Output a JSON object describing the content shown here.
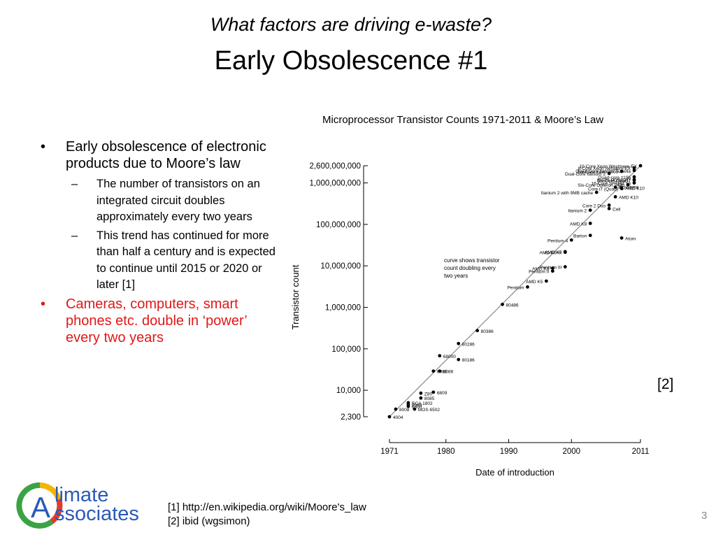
{
  "slide": {
    "subtitle": "What factors are driving e-waste?",
    "title": "Early Obsolescence #1",
    "page_number": "3",
    "figure_ref": "[2]"
  },
  "bullets": [
    {
      "text": "Early obsolescence of electronic products due to Moore’s law",
      "children": [
        "The number of transistors on an integrated circuit doubles approximately every two years",
        "This trend has continued for more than half a century and is expected to continue until 2015 or 2020 or later [1]"
      ]
    },
    {
      "text": "Cameras, computers, smart phones etc. double in ‘power’ every two years",
      "color": "#e01818"
    }
  ],
  "footnotes": [
    "[1] http://en.wikipedia.org/wiki/Moore's_law",
    "[2] ibid (wgsimon)"
  ],
  "logo": {
    "part1": "limate",
    "part2": "ssociates",
    "letter": "A"
  },
  "chart_data": {
    "type": "scatter",
    "title": "Microprocessor Transistor Counts 1971-2011 & Moore’s Law",
    "xlabel": "Date of introduction",
    "ylabel": "Transistor count",
    "xlim": [
      1971,
      2011
    ],
    "ylim": [
      2300,
      2600000000
    ],
    "y_scale": "log",
    "x_ticks": [
      1971,
      1980,
      1990,
      2000,
      2011
    ],
    "y_ticks": [
      {
        "value": 2300,
        "label": "2,300"
      },
      {
        "value": 10000,
        "label": "10,000"
      },
      {
        "value": 100000,
        "label": "100,000"
      },
      {
        "value": 1000000,
        "label": "1,000,000"
      },
      {
        "value": 10000000,
        "label": "10,000,000"
      },
      {
        "value": 100000000,
        "label": "100,000,000"
      },
      {
        "value": 1000000000,
        "label": "1,000,000,000"
      },
      {
        "value": 2600000000,
        "label": "2,600,000,000"
      }
    ],
    "trend_line": {
      "from": [
        1971,
        2300
      ],
      "to": [
        2011,
        2600000000
      ]
    },
    "annotation": "curve shows transistor count doubling every two years",
    "points": [
      {
        "name": "4004",
        "x": 1971,
        "y": 2300
      },
      {
        "name": "8008",
        "x": 1972,
        "y": 3500
      },
      {
        "name": "8080",
        "x": 1974,
        "y": 4500
      },
      {
        "name": "RCA 1802",
        "x": 1974,
        "y": 5000
      },
      {
        "name": "6800",
        "x": 1974,
        "y": 4100
      },
      {
        "name": "8085",
        "x": 1976,
        "y": 6500
      },
      {
        "name": "Z80",
        "x": 1976,
        "y": 8500
      },
      {
        "name": "MOS 6502",
        "x": 1975,
        "y": 3510
      },
      {
        "name": "6809",
        "x": 1978,
        "y": 9000
      },
      {
        "name": "8086",
        "x": 1978,
        "y": 29000
      },
      {
        "name": "8088",
        "x": 1979,
        "y": 29000
      },
      {
        "name": "68000",
        "x": 1979,
        "y": 68000
      },
      {
        "name": "80186",
        "x": 1982,
        "y": 55000
      },
      {
        "name": "80286",
        "x": 1982,
        "y": 134000
      },
      {
        "name": "80386",
        "x": 1985,
        "y": 275000
      },
      {
        "name": "80486",
        "x": 1989,
        "y": 1180000
      },
      {
        "name": "Pentium",
        "x": 1993,
        "y": 3100000
      },
      {
        "name": "AMD K5",
        "x": 1996,
        "y": 4300000
      },
      {
        "name": "Pentium II",
        "x": 1997,
        "y": 7500000
      },
      {
        "name": "Pentium III",
        "x": 1999,
        "y": 9500000
      },
      {
        "name": "AMD K6",
        "x": 1997,
        "y": 8800000
      },
      {
        "name": "AMD K6-III",
        "x": 1999,
        "y": 21300000
      },
      {
        "name": "AMD K7",
        "x": 1999,
        "y": 22000000
      },
      {
        "name": "Pentium 4",
        "x": 2000,
        "y": 42000000
      },
      {
        "name": "Barton",
        "x": 2003,
        "y": 54300000
      },
      {
        "name": "AMD K8",
        "x": 2003,
        "y": 105900000
      },
      {
        "name": "Atom",
        "x": 2008,
        "y": 47000000
      },
      {
        "name": "Itanium 2",
        "x": 2003,
        "y": 220000000
      },
      {
        "name": "Cell",
        "x": 2006,
        "y": 241000000
      },
      {
        "name": "Core 2 Duo",
        "x": 2006,
        "y": 291000000
      },
      {
        "name": "AMD K10",
        "x": 2007,
        "y": 463000000
      },
      {
        "name": "Core i7 (Quad)",
        "x": 2008,
        "y": 731000000
      },
      {
        "name": "Itanium 2 with 9MB cache",
        "x": 2004,
        "y": 592000000
      },
      {
        "name": "POWER6",
        "x": 2007,
        "y": 789000000
      },
      {
        "name": "Six-Core Opteron 2400",
        "x": 2009,
        "y": 904000000
      },
      {
        "name": "AMD K10",
        "x": 2008,
        "y": 758000000
      },
      {
        "name": "Dual-Core Itanium 2",
        "x": 2006,
        "y": 1700000000
      },
      {
        "name": "8-core POWER7",
        "x": 2010,
        "y": 1200000000
      },
      {
        "name": "Quad-core z196",
        "x": 2010,
        "y": 1400000000
      },
      {
        "name": "Quad-Core Itanium Tukwila",
        "x": 2010,
        "y": 2000000000
      },
      {
        "name": "8-Core Xeon Nehalem-EX",
        "x": 2010,
        "y": 2300000000
      },
      {
        "name": "Six-Core Xeon 7400",
        "x": 2008,
        "y": 1900000000
      },
      {
        "name": "Six-Core Core i7",
        "x": 2010,
        "y": 1170000000
      },
      {
        "name": "16-Core SPARC T3",
        "x": 2010,
        "y": 1000000000
      },
      {
        "name": "10-Core Xeon Westmere-EX",
        "x": 2011,
        "y": 2600000000
      }
    ]
  }
}
